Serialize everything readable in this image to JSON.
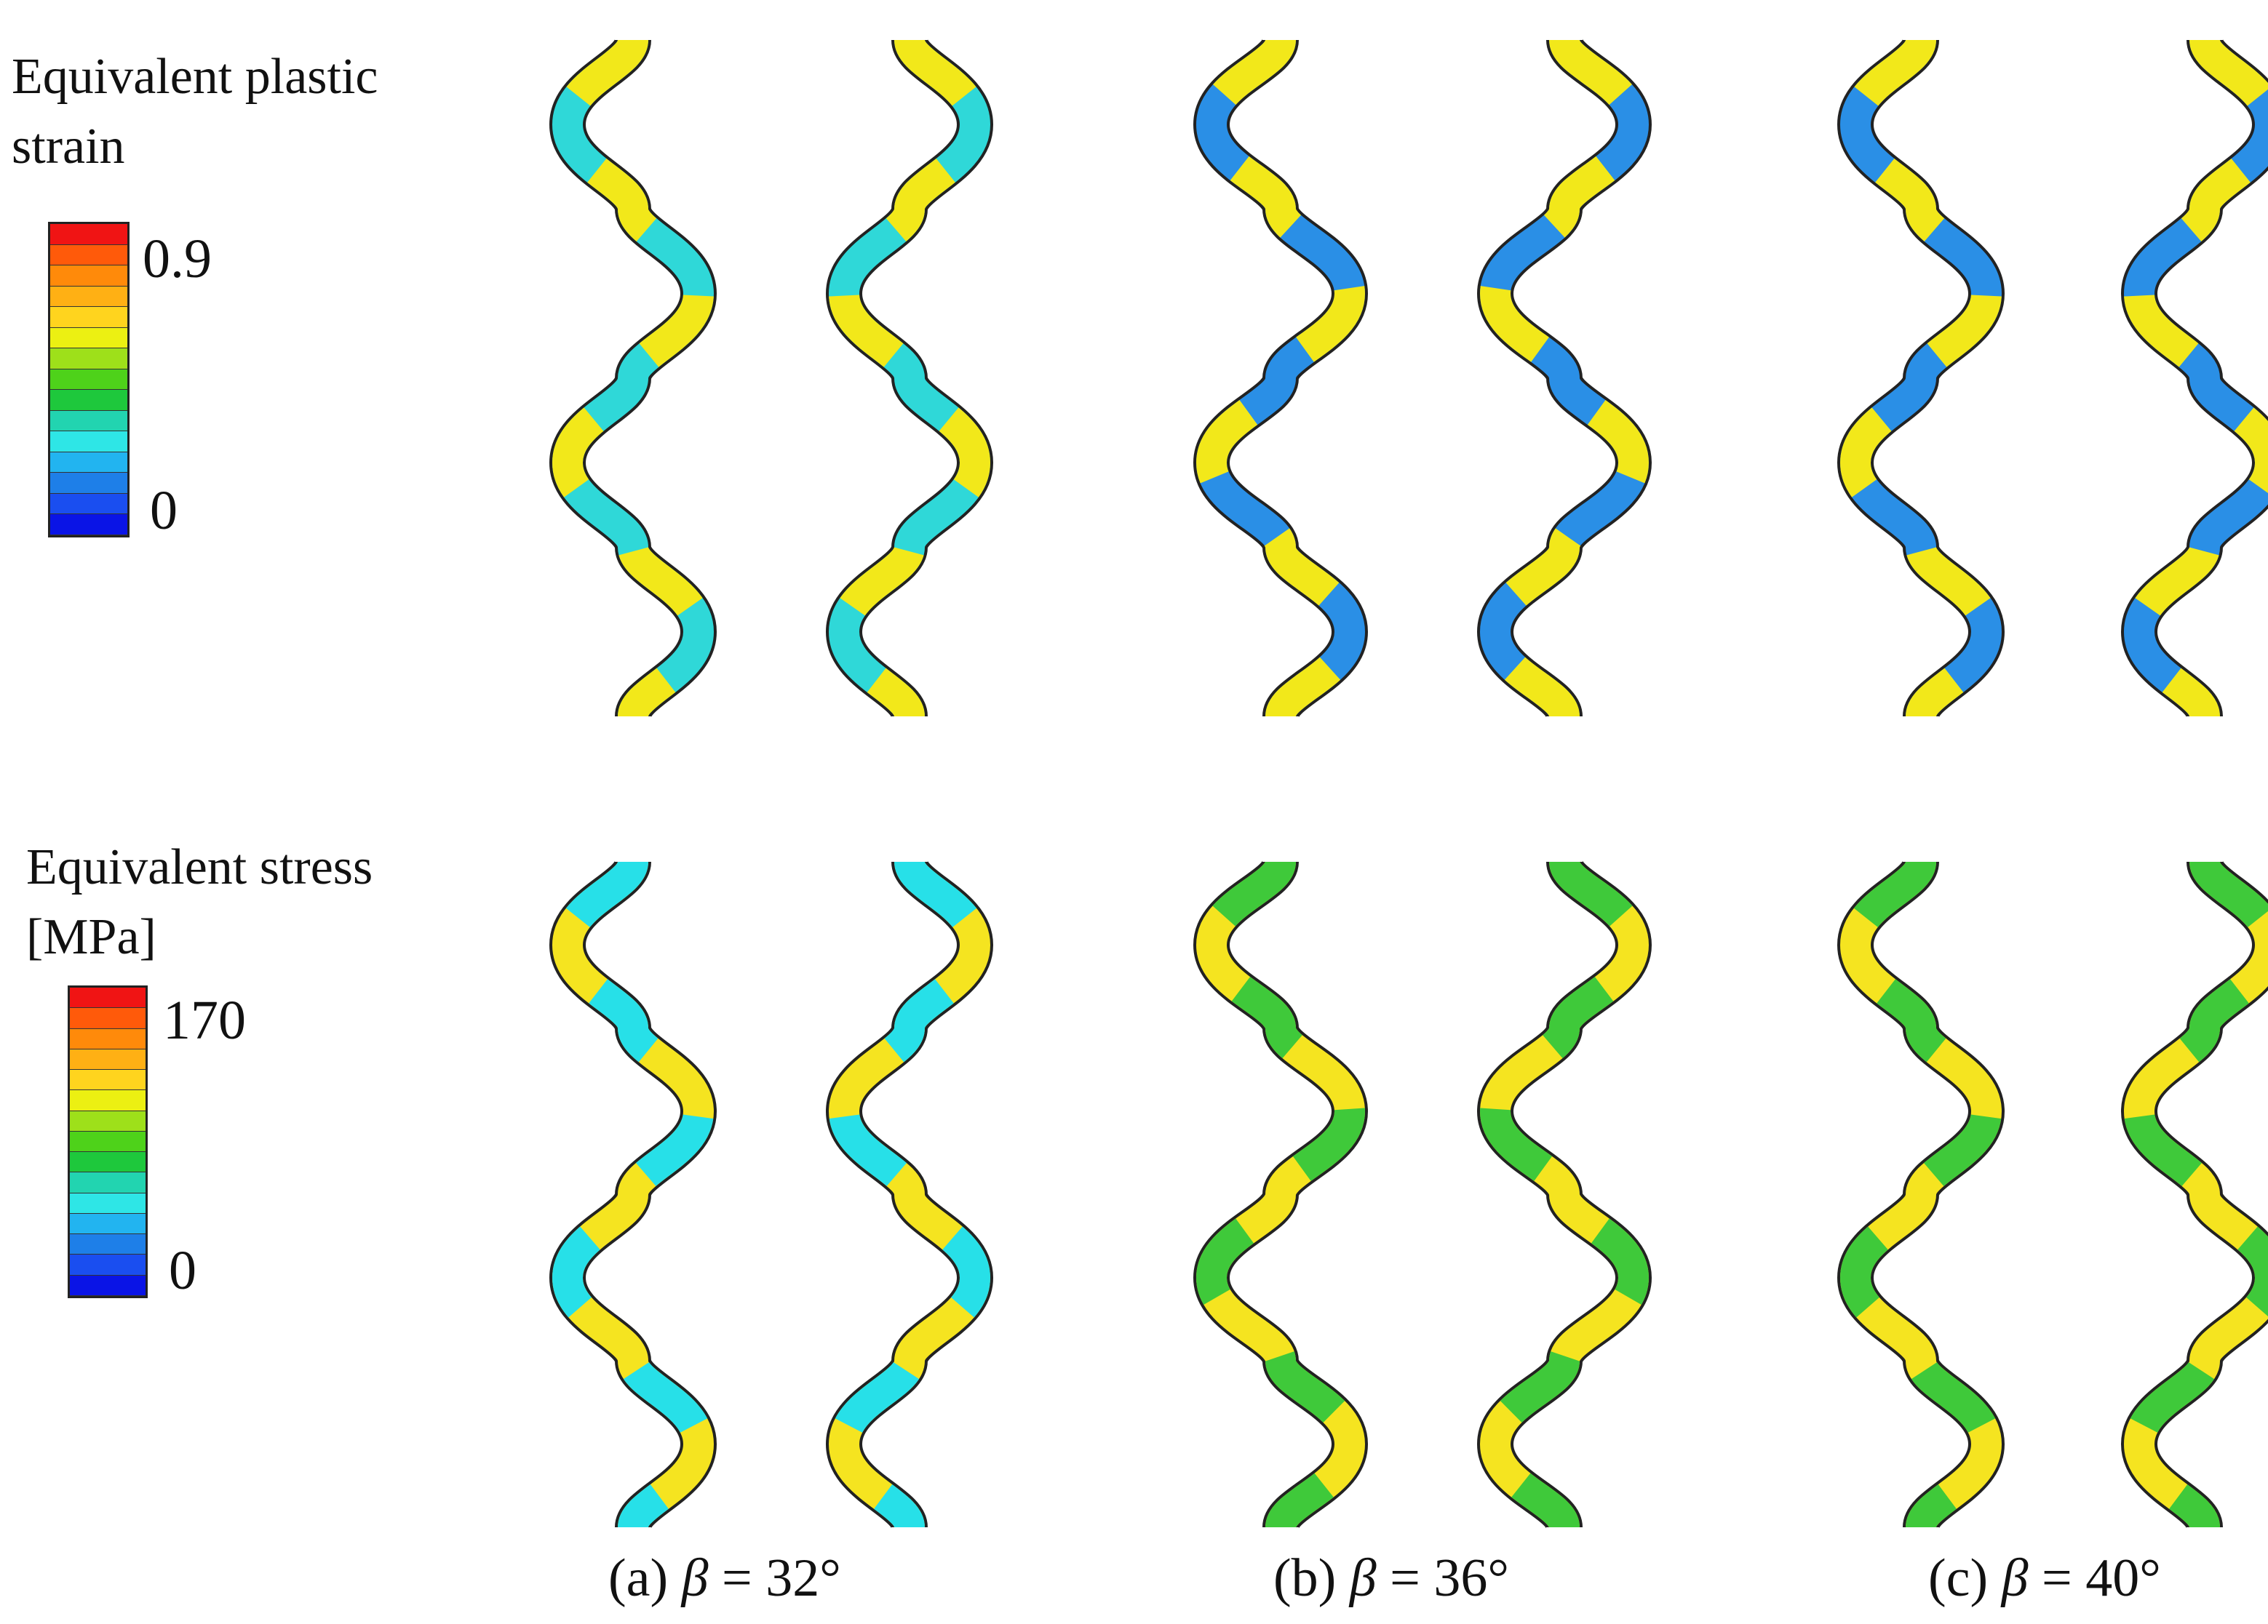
{
  "legends": {
    "strain": {
      "title": "Equivalent plastic\nstrain",
      "max_label": "0.9",
      "min_label": "0",
      "max": 0.9,
      "min": 0
    },
    "stress": {
      "title": "Equivalent stress\n[MPa]",
      "max_label": "170",
      "min_label": "0",
      "max": 170,
      "min": 0
    }
  },
  "colormap": [
    "#0a14e6",
    "#1a4ef0",
    "#1e7fe8",
    "#22b4f0",
    "#2ee6e6",
    "#22d4b0",
    "#1ec83c",
    "#4ed21a",
    "#9ee01a",
    "#ecf012",
    "#ffd41e",
    "#ffb014",
    "#ff8a0a",
    "#ff5a0a",
    "#f01414"
  ],
  "captions": [
    {
      "prefix": "(a) ",
      "symbol": "β",
      "suffix": " = 32°"
    },
    {
      "prefix": "(b) ",
      "symbol": "β",
      "suffix": " = 36°"
    },
    {
      "prefix": "(c) ",
      "symbol": "β",
      "suffix": " = 40°"
    }
  ],
  "colors": {
    "strain_low": "#2a8fe6",
    "strain_mid": "#2fd8d8",
    "strain_green": "#3ccc28",
    "strain_yellow": "#f2e81a",
    "stress_yellow": "#f5e420",
    "stress_orange": "#f7b82a",
    "stress_green": "#3fc93a",
    "stress_cyan": "#27e0e8",
    "outline": "#222222"
  }
}
